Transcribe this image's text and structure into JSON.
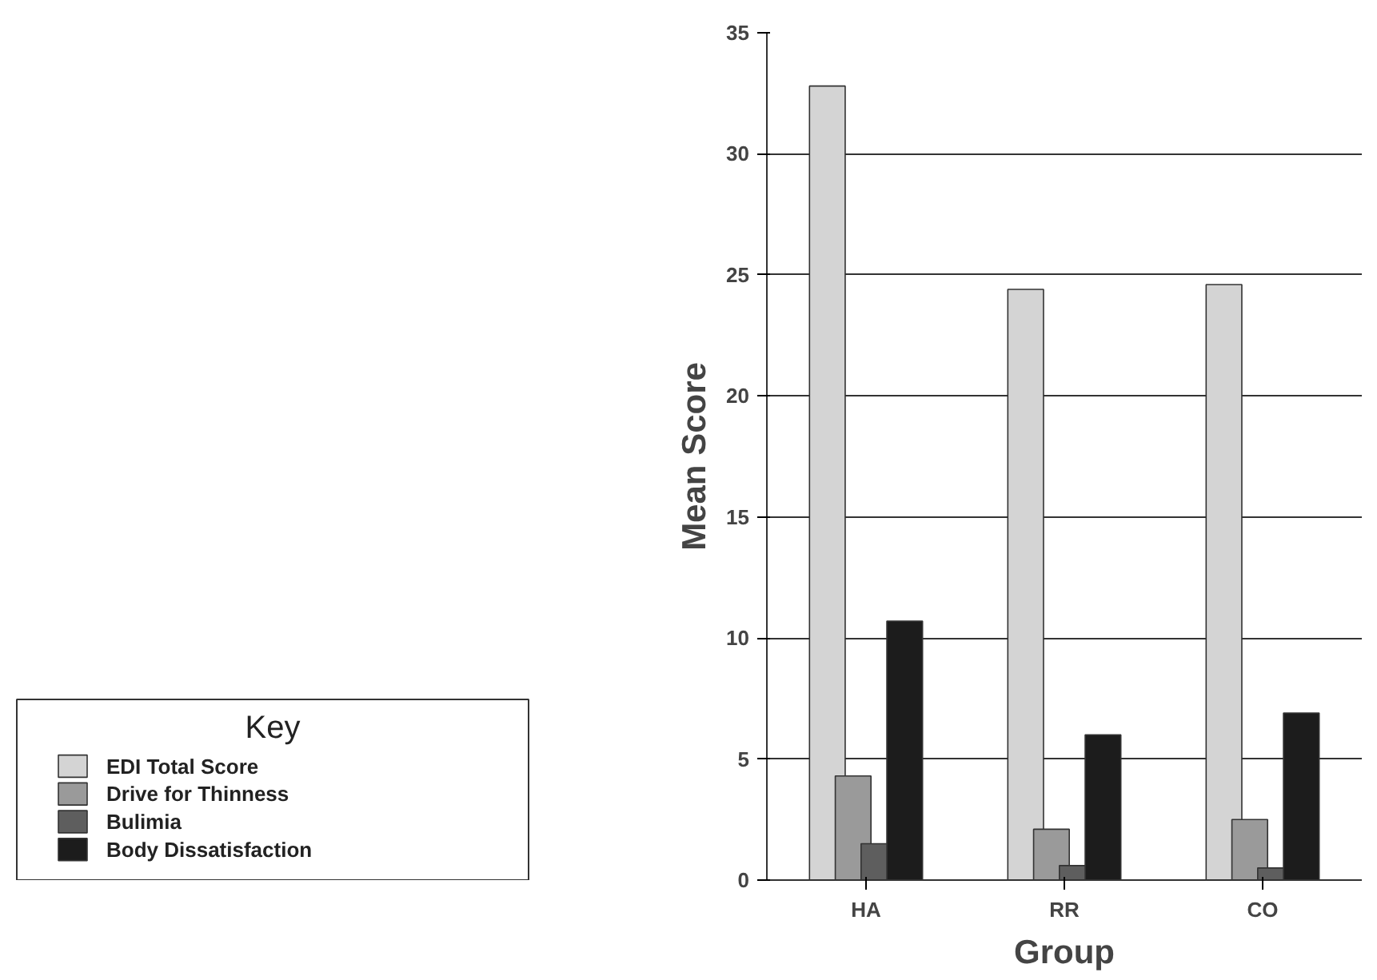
{
  "chart_data": {
    "type": "bar",
    "xlabel": "Group",
    "ylabel": "Mean Score",
    "legend_title": "Key",
    "categories": [
      "HA",
      "RR",
      "CO"
    ],
    "series": [
      {
        "name": "EDI Total Score",
        "color": "#d4d4d4",
        "values": [
          32.8,
          24.4,
          24.6
        ]
      },
      {
        "name": "Drive for Thinness",
        "color": "#9a9a9a",
        "values": [
          4.3,
          2.1,
          2.5
        ]
      },
      {
        "name": "Bulimia",
        "color": "#5e5e5e",
        "values": [
          1.5,
          0.6,
          0.5
        ]
      },
      {
        "name": "Body Dissatisfaction",
        "color": "#1c1c1c",
        "values": [
          10.7,
          6.0,
          6.9
        ]
      }
    ],
    "ylim": [
      0,
      35
    ],
    "yticks": [
      0,
      5,
      10,
      15,
      20,
      25,
      30,
      35
    ],
    "grid": "y",
    "legend": "bottom left"
  }
}
